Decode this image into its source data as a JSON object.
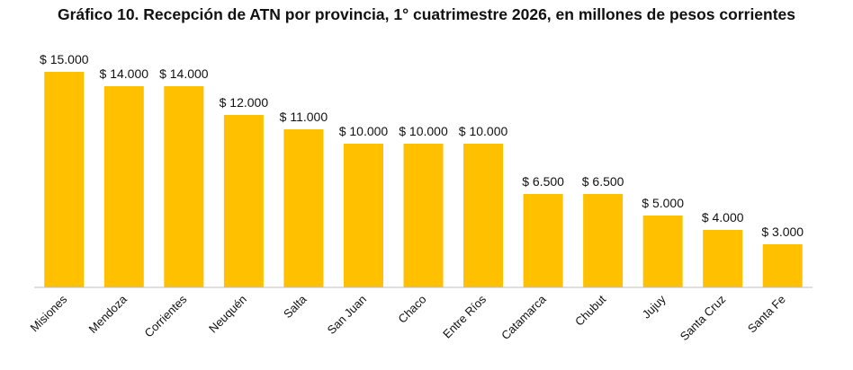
{
  "chart_data": {
    "type": "bar",
    "title": "Gráfico 10. Recepción de ATN por provincia, 1° cuatrimestre 2026, en millones de pesos corrientes",
    "categories": [
      "Misiones",
      "Mendoza",
      "Corrientes",
      "Neuquén",
      "Salta",
      "San Juan",
      "Chaco",
      "Entre Ríos",
      "Catamarca",
      "Chubut",
      "Jujuy",
      "Santa Cruz",
      "Santa Fe"
    ],
    "values": [
      15000,
      14000,
      14000,
      12000,
      11000,
      10000,
      10000,
      10000,
      6500,
      6500,
      5000,
      4000,
      3000
    ],
    "data_labels": [
      "$ 15.000",
      "$ 14.000",
      "$ 14.000",
      "$ 12.000",
      "$ 11.000",
      "$ 10.000",
      "$ 10.000",
      "$ 10.000",
      "$ 6.500",
      "$ 6.500",
      "$ 5.000",
      "$ 4.000",
      "$ 3.000"
    ],
    "xlabel": "",
    "ylabel": "",
    "ylim": [
      0,
      15000
    ],
    "grid": false,
    "legend": "none",
    "bar_color": "#FFC000",
    "axis_color": "#BFBFBF"
  }
}
